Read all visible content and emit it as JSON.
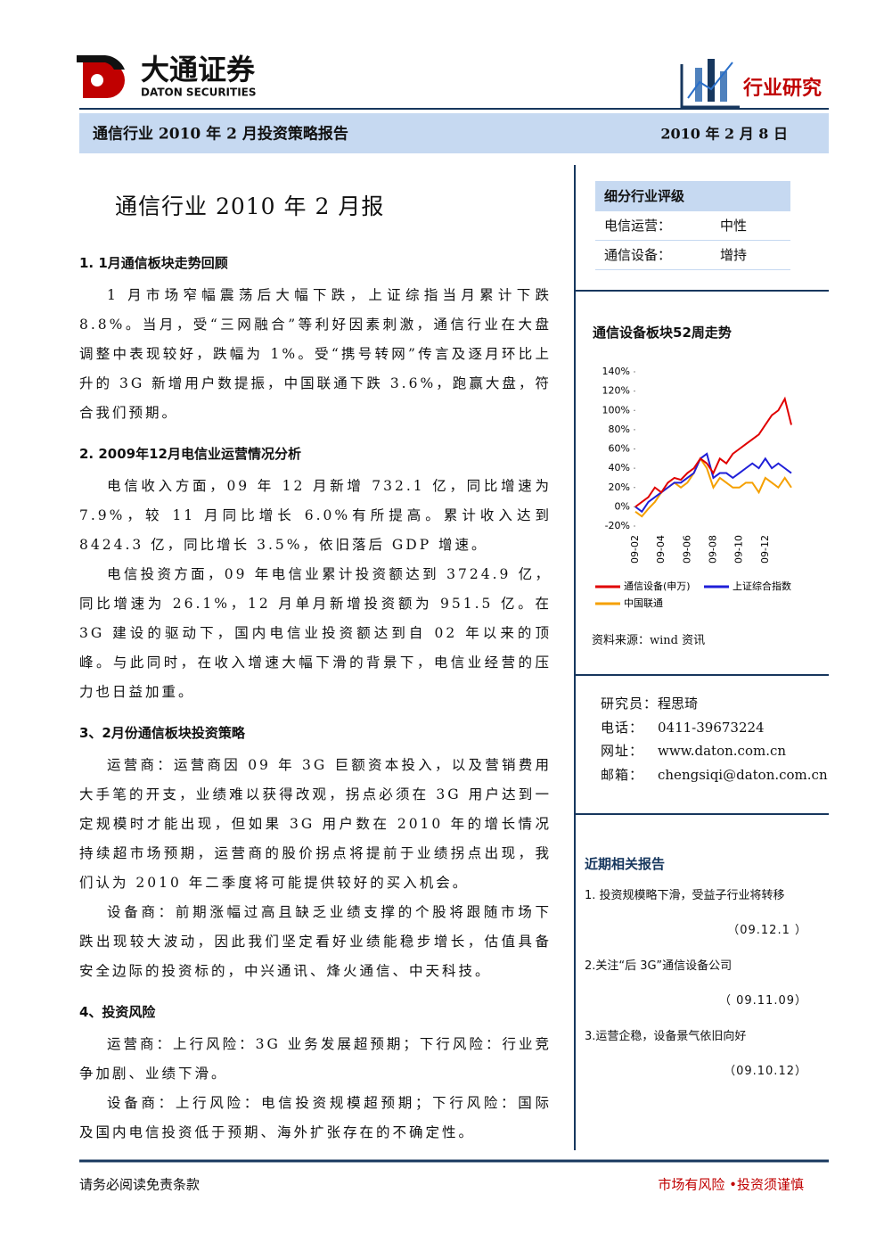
{
  "header": {
    "company_cn": "大通证券",
    "company_en": "DATON SECURITIES",
    "badge": "行业研究",
    "report_title": "通信行业 2010 年 2 月投资策略报告",
    "date": "2010 年 2 月 8 日"
  },
  "main": {
    "title": "通信行业 2010 年 2 月报",
    "sections": [
      {
        "heading": "1. 1月通信板块走势回顾",
        "paragraphs": [
          "1 月市场窄幅震荡后大幅下跌，上证综指当月累计下跌 8.8%。当月，受“三网融合”等利好因素刺激，通信行业在大盘调整中表现较好，跌幅为 1%。受“携号转网”传言及逐月环比上升的 3G 新增用户数提振，中国联通下跌 3.6%，跑赢大盘，符合我们预期。"
        ]
      },
      {
        "heading": "2. 2009年12月电信业运营情况分析",
        "paragraphs": [
          "电信收入方面，09 年 12 月新增 732.1 亿，同比增速为 7.9%，较 11 月同比增长 6.0%有所提高。累计收入达到 8424.3 亿，同比增长 3.5%，依旧落后 GDP 增速。",
          "电信投资方面，09 年电信业累计投资额达到 3724.9 亿，同比增速为 26.1%，12 月单月新增投资额为 951.5 亿。在 3G 建设的驱动下，国内电信业投资额达到自 02 年以来的顶峰。与此同时，在收入增速大幅下滑的背景下，电信业经营的压力也日益加重。"
        ]
      },
      {
        "heading": "3、2月份通信板块投资策略",
        "paragraphs": [
          "运营商：运营商因 09 年 3G 巨额资本投入，以及营销费用大手笔的开支，业绩难以获得改观，拐点必须在 3G 用户达到一定规模时才能出现，但如果 3G 用户数在 2010 年的增长情况持续超市场预期，运营商的股价拐点将提前于业绩拐点出现，我们认为 2010 年二季度将可能提供较好的买入机会。",
          "设备商：前期涨幅过高且缺乏业绩支撑的个股将跟随市场下跌出现较大波动，因此我们坚定看好业绩能稳步增长，估值具备安全边际的投资标的，中兴通讯、烽火通信、中天科技。"
        ]
      },
      {
        "heading": "4、投资风险",
        "paragraphs": [
          "运营商：上行风险：3G 业务发展超预期；下行风险：行业竞争加剧、业绩下滑。",
          "设备商：上行风险：电信投资规模超预期；下行风险：国际及国内电信投资低于预期、海外扩张存在的不确定性。"
        ]
      }
    ]
  },
  "rating": {
    "heading": "细分行业评级",
    "rows": [
      [
        "电信运营：",
        "中性"
      ],
      [
        "通信设备：",
        "增持"
      ]
    ]
  },
  "chart_data": {
    "type": "line",
    "title": "通信设备板块52周走势",
    "source": "资料来源：wind 资讯",
    "categories": [
      "09-02",
      null,
      null,
      null,
      "09-04",
      null,
      null,
      null,
      "09-06",
      null,
      null,
      null,
      "09-08",
      null,
      null,
      null,
      "09-10",
      null,
      null,
      null,
      "09-12",
      null,
      null,
      null,
      null
    ],
    "series": [
      {
        "name": "通信设备(申万)",
        "color": "#e00000",
        "values": [
          0,
          5,
          10,
          20,
          15,
          25,
          30,
          28,
          35,
          40,
          50,
          45,
          35,
          50,
          45,
          55,
          60,
          65,
          70,
          75,
          85,
          95,
          100,
          112,
          85
        ]
      },
      {
        "name": "上证综合指数",
        "color": "#1f1fd8",
        "values": [
          0,
          -5,
          5,
          10,
          15,
          20,
          25,
          25,
          30,
          35,
          50,
          55,
          30,
          35,
          35,
          30,
          35,
          40,
          45,
          40,
          50,
          40,
          45,
          40,
          35
        ]
      },
      {
        "name": "中国联通",
        "color": "#f5a000",
        "values": [
          -5,
          -10,
          -2,
          5,
          15,
          20,
          25,
          20,
          25,
          35,
          50,
          40,
          20,
          30,
          25,
          20,
          20,
          25,
          25,
          15,
          30,
          25,
          20,
          30,
          20
        ]
      }
    ],
    "ylim": [
      -20,
      140
    ],
    "yticks": [
      {
        "value": -20,
        "label": "-20%"
      },
      {
        "value": 0,
        "label": "0%"
      },
      {
        "value": 20,
        "label": "20%"
      },
      {
        "value": 40,
        "label": "40%"
      },
      {
        "value": 60,
        "label": "60%"
      },
      {
        "value": 80,
        "label": "80%"
      },
      {
        "value": 100,
        "label": "100%"
      },
      {
        "value": 120,
        "label": "120%"
      },
      {
        "value": 140,
        "label": "140%"
      }
    ],
    "grid": false
  },
  "analyst": {
    "rows": [
      [
        "研究员：",
        "程思琦"
      ],
      [
        "电话：",
        "0411-39673224"
      ],
      [
        "网址：",
        "www.daton.com.cn"
      ],
      [
        "邮箱：",
        "chengsiqi@daton.com.cn"
      ]
    ]
  },
  "related": {
    "heading": "近期相关报告",
    "items": [
      {
        "title": "1. 投资规模略下滑，受益子行业将转移",
        "date": "（09.12.1 ）"
      },
      {
        "title": "2.关注“后 3G”通信设备公司",
        "date": "（ 09.11.09）"
      },
      {
        "title": "3.运营企稳，设备景气依旧向好",
        "date": "（09.10.12）"
      }
    ]
  },
  "footer": {
    "left": "请务必阅读免责条款",
    "right": "市场有风险 •投资须谨慎"
  }
}
